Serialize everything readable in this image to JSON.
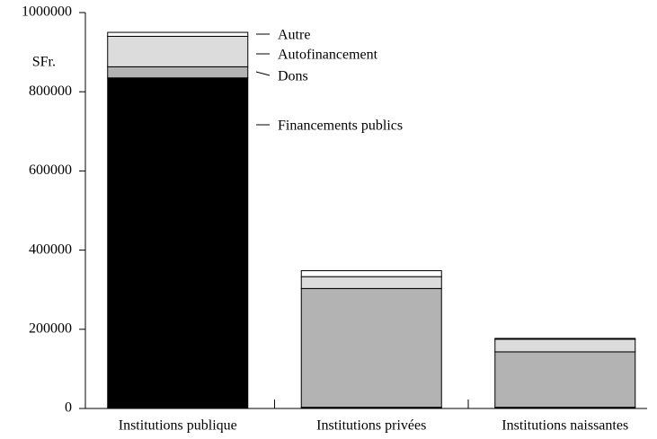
{
  "chart_data": {
    "type": "stacked_bar",
    "y_label": "SFr.",
    "categories": [
      "Institutions publique",
      "Institutions privées",
      "Institutions naissantes"
    ],
    "series": [
      {
        "name": "Financements publics",
        "color": "#000000",
        "values": [
          835000,
          3000,
          3000
        ]
      },
      {
        "name": "Dons",
        "color": "#b3b3b3",
        "values": [
          28000,
          300000,
          140000
        ]
      },
      {
        "name": "Autofinancement",
        "color": "#dcdcdc",
        "values": [
          77000,
          30000,
          32000
        ]
      },
      {
        "name": "Autre",
        "color": "#ffffff",
        "values": [
          10000,
          15000,
          2000
        ]
      }
    ],
    "ylim": [
      0,
      1000000
    ],
    "yticks": [
      0,
      200000,
      400000,
      600000,
      800000,
      1000000
    ]
  }
}
